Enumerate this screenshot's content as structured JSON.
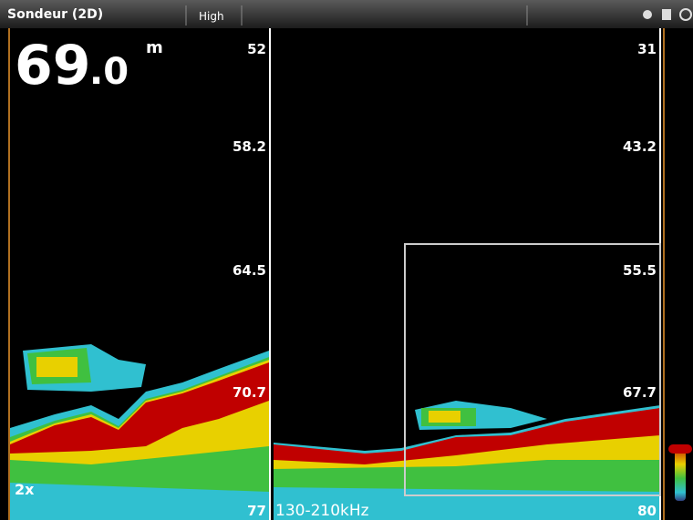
{
  "header": {
    "title": "Sondeur (2D)",
    "mode": "High"
  },
  "depth": {
    "whole": "69",
    "decimal": ".0",
    "unit": "m"
  },
  "left_panel": {
    "zoom": "2x",
    "scale": [
      "52",
      "58.2",
      "64.5",
      "70.7",
      "77"
    ]
  },
  "right_panel": {
    "frequency": "130-210kHz",
    "scale": [
      "31",
      "43.2",
      "55.5",
      "67.7",
      "80"
    ]
  }
}
